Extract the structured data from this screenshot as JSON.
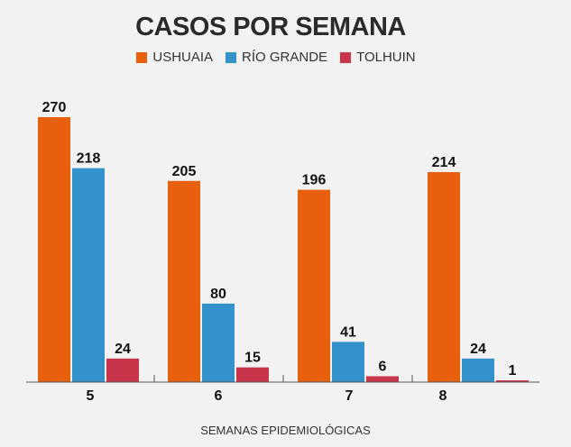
{
  "chart_data": {
    "type": "bar",
    "title": "CASOS POR SEMANA",
    "xlabel": "SEMANAS EPIDEMIOLÓGICAS",
    "ylabel": "",
    "categories": [
      "5",
      "6",
      "7",
      "8"
    ],
    "series": [
      {
        "name": "USHUAIA",
        "color": "#e8600e",
        "values": [
          270,
          205,
          196,
          214
        ]
      },
      {
        "name": "RÍO GRANDE",
        "color": "#3391cc",
        "values": [
          218,
          80,
          41,
          24
        ]
      },
      {
        "name": "TOLHUIN",
        "color": "#c8344a",
        "values": [
          24,
          15,
          6,
          1
        ]
      }
    ],
    "ylim": [
      0,
      270
    ],
    "grid": false,
    "legend_position": "top-center",
    "data_labels": true
  }
}
